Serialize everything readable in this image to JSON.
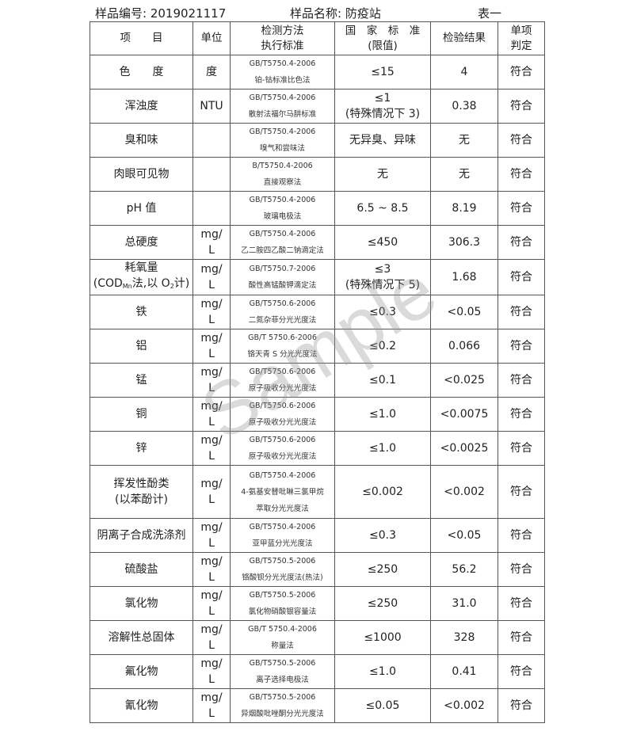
{
  "header": {
    "sample_no": "样品编号: 2019021117",
    "sample_name": "样品名称: 防疫站",
    "table_label": "表一"
  },
  "columns": {
    "item": "项　　目",
    "unit": "单位",
    "method": [
      "检测方法",
      "执行标准"
    ],
    "standard": [
      "国　家　标　准",
      "(限值)"
    ],
    "result": "检验结果",
    "judgment": [
      "单项",
      "判定"
    ]
  },
  "watermark": "Sample",
  "rows": [
    {
      "item": [
        [
          {
            "t": "色　　度"
          }
        ]
      ],
      "unit": [
        "度"
      ],
      "method": [
        "GB/T5750.4-2006",
        "铂-钴标准比色法"
      ],
      "standard": [
        "≤15"
      ],
      "result": "4",
      "judgment": "符合"
    },
    {
      "item": [
        [
          {
            "t": "浑浊度"
          }
        ]
      ],
      "unit": [
        "NTU"
      ],
      "method": [
        "GB/T5750.4-2006",
        "散射法福尔马肼标准"
      ],
      "standard": [
        "≤1",
        "(特殊情况下 3)"
      ],
      "result": "0.38",
      "judgment": "符合"
    },
    {
      "item": [
        [
          {
            "t": "臭和味"
          }
        ]
      ],
      "unit": [],
      "method": [
        "GB/T5750.4-2006",
        "嗅气和尝味法"
      ],
      "standard": [
        "无异臭、异味"
      ],
      "result": "无",
      "judgment": "符合"
    },
    {
      "item": [
        [
          {
            "t": "肉眼可见物"
          }
        ]
      ],
      "unit": [],
      "method": [
        "B/T5750.4-2006",
        "直接观察法"
      ],
      "standard": [
        "无"
      ],
      "result": "无",
      "judgment": "符合"
    },
    {
      "item": [
        [
          {
            "t": "pH 值"
          }
        ]
      ],
      "unit": [],
      "method": [
        "GB/T5750.4-2006",
        "玻璃电极法"
      ],
      "standard": [
        "6.5 ~ 8.5"
      ],
      "result": "8.19",
      "judgment": "符合"
    },
    {
      "item": [
        [
          {
            "t": "总硬度"
          }
        ]
      ],
      "unit": [
        "mg/",
        "L"
      ],
      "method": [
        "GB/T5750.4-2006",
        "乙二胺四乙酸二钠滴定法"
      ],
      "standard": [
        "≤450"
      ],
      "result": "306.3",
      "judgment": "符合"
    },
    {
      "item": [
        [
          {
            "t": "耗氧量"
          }
        ],
        [
          {
            "t": "(COD"
          },
          {
            "sub": "Mn"
          },
          {
            "t": "法,以 O"
          },
          {
            "sub": "2"
          },
          {
            "t": "计)"
          }
        ]
      ],
      "unit": [
        "mg/",
        "L"
      ],
      "method": [
        "GB/T5750.7-2006",
        "酸性高锰酸钾滴定法"
      ],
      "standard": [
        "≤3",
        "(特殊情况下 5)"
      ],
      "result": "1.68",
      "judgment": "符合"
    },
    {
      "item": [
        [
          {
            "t": "铁"
          }
        ]
      ],
      "unit": [
        "mg/",
        "L"
      ],
      "method": [
        "GB/T5750.6-2006",
        "二氮杂菲分光光度法"
      ],
      "standard": [
        "≤0.3"
      ],
      "result": "<0.05",
      "judgment": "符合"
    },
    {
      "item": [
        [
          {
            "t": "铝"
          }
        ]
      ],
      "unit": [
        "mg/",
        "L"
      ],
      "method": [
        "GB/T 5750.6-2006",
        "铬天青 S 分光光度法"
      ],
      "standard": [
        "≤0.2"
      ],
      "result": "0.066",
      "judgment": "符合"
    },
    {
      "item": [
        [
          {
            "t": "锰"
          }
        ]
      ],
      "unit": [
        "mg/",
        "L"
      ],
      "method": [
        "GB/T5750.6-2006",
        "原子吸收分光光度法"
      ],
      "standard": [
        "≤0.1"
      ],
      "result": "<0.025",
      "judgment": "符合"
    },
    {
      "item": [
        [
          {
            "t": "铜"
          }
        ]
      ],
      "unit": [
        "mg/",
        "L"
      ],
      "method": [
        "GB/T5750.6-2006",
        "原子吸收分光光度法"
      ],
      "standard": [
        "≤1.0"
      ],
      "result": "<0.0075",
      "judgment": "符合"
    },
    {
      "item": [
        [
          {
            "t": "锌"
          }
        ]
      ],
      "unit": [
        "mg/",
        "L"
      ],
      "method": [
        "GB/T5750.6-2006",
        "原子吸收分光光度法"
      ],
      "standard": [
        "≤1.0"
      ],
      "result": "<0.0025",
      "judgment": "符合"
    },
    {
      "item": [
        [
          {
            "t": "挥发性酚类"
          }
        ],
        [
          {
            "t": "(以苯酚计)"
          }
        ]
      ],
      "unit": [
        "mg/",
        "L"
      ],
      "method": [
        "GB/T5750.4-2006",
        "4-氨基安替吡啉三氯甲烷",
        "萃取分光光度法"
      ],
      "standard": [
        "≤0.002"
      ],
      "result": "<0.002",
      "judgment": "符合"
    },
    {
      "item": [
        [
          {
            "t": "阴离子合成洗涤剂"
          }
        ]
      ],
      "unit": [
        "mg/",
        "L"
      ],
      "method": [
        "GB/T5750.4-2006",
        "亚甲蓝分光光度法"
      ],
      "standard": [
        "≤0.3"
      ],
      "result": "<0.05",
      "judgment": "符合"
    },
    {
      "item": [
        [
          {
            "t": "硫酸盐"
          }
        ]
      ],
      "unit": [
        "mg/",
        "L"
      ],
      "method": [
        "GB/T5750.5-2006",
        "铬酸钡分光光度法(热法)"
      ],
      "standard": [
        "≤250"
      ],
      "result": "56.2",
      "judgment": "符合"
    },
    {
      "item": [
        [
          {
            "t": "氯化物"
          }
        ]
      ],
      "unit": [
        "mg/",
        "L"
      ],
      "method": [
        "GB/T5750.5-2006",
        "氯化物硝酸银容量法"
      ],
      "standard": [
        "≤250"
      ],
      "result": "31.0",
      "judgment": "符合"
    },
    {
      "item": [
        [
          {
            "t": "溶解性总固体"
          }
        ]
      ],
      "unit": [
        "mg/",
        "L"
      ],
      "method": [
        "GB/T 5750.4-2006",
        "称量法"
      ],
      "standard": [
        "≤1000"
      ],
      "result": "328",
      "judgment": "符合"
    },
    {
      "item": [
        [
          {
            "t": "氟化物"
          }
        ]
      ],
      "unit": [
        "mg/",
        "L"
      ],
      "method": [
        "GB/T5750.5-2006",
        "离子选择电极法"
      ],
      "standard": [
        "≤1.0"
      ],
      "result": "0.41",
      "judgment": "符合"
    },
    {
      "item": [
        [
          {
            "t": "氰化物"
          }
        ]
      ],
      "unit": [
        "mg/",
        "L"
      ],
      "method": [
        "GB/T5750.5-2006",
        "异烟酸吡唑酮分光光度法"
      ],
      "standard": [
        "≤0.05"
      ],
      "result": "<0.002",
      "judgment": "符合"
    }
  ]
}
